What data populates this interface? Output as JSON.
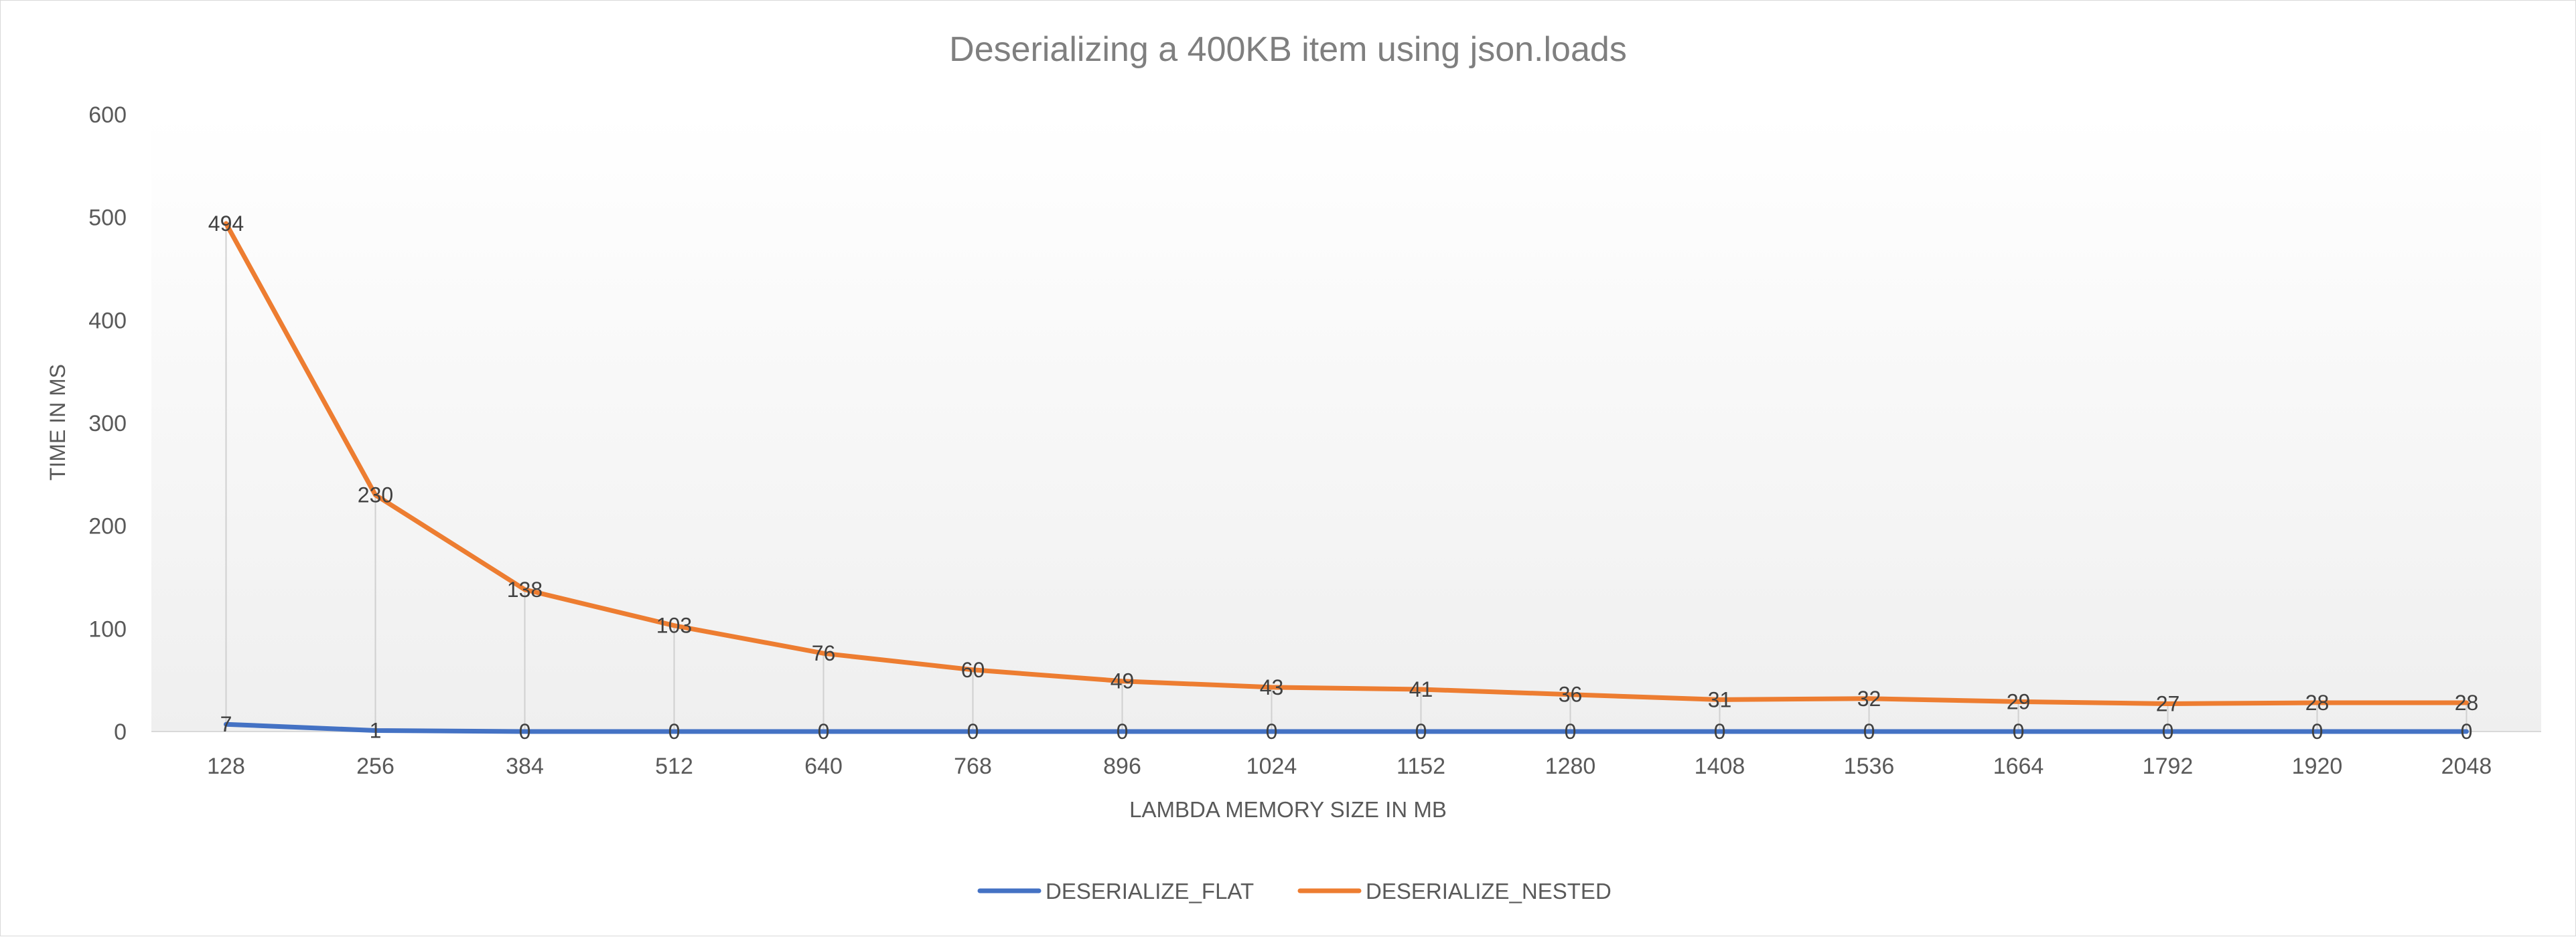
{
  "chart_data": {
    "type": "line",
    "title": "Deserializing a 400KB item using json.loads",
    "xlabel": "LAMBDA MEMORY SIZE IN MB",
    "ylabel": "TIME IN MS",
    "ylim": [
      0,
      600
    ],
    "yticks": [
      "0",
      "100",
      "200",
      "300",
      "400",
      "500",
      "600"
    ],
    "categories": [
      "128",
      "256",
      "384",
      "512",
      "640",
      "768",
      "896",
      "1024",
      "1152",
      "1280",
      "1408",
      "1536",
      "1664",
      "1792",
      "1920",
      "2048"
    ],
    "series": [
      {
        "name": "DESERIALIZE_FLAT",
        "color": "#4472c4",
        "values": [
          7,
          1,
          0,
          0,
          0,
          0,
          0,
          0,
          0,
          0,
          0,
          0,
          0,
          0,
          0,
          0
        ]
      },
      {
        "name": "DESERIALIZE_NESTED",
        "color": "#ed7d31",
        "values": [
          494,
          230,
          138,
          103,
          76,
          60,
          49,
          43,
          41,
          36,
          31,
          32,
          29,
          27,
          28,
          28
        ]
      }
    ],
    "grid": false,
    "drop_lines": true,
    "data_labels": true,
    "legend_position": "bottom"
  }
}
